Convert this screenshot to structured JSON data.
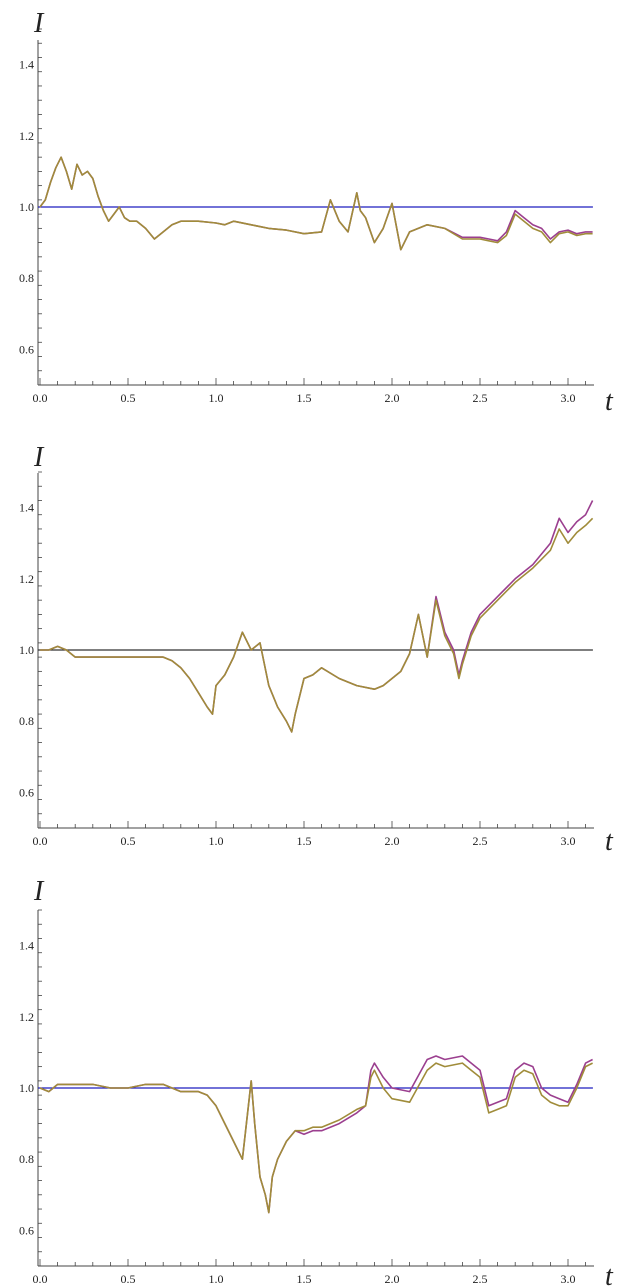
{
  "chart_data": [
    {
      "type": "line",
      "ylabel": "I",
      "xlabel": "t",
      "xlim": [
        0,
        3.14159
      ],
      "ylim": [
        0.5,
        1.5
      ],
      "x_ticks": [
        "0.0",
        "0.5",
        "1.0",
        "1.5",
        "2.0",
        "2.5",
        "3.0"
      ],
      "y_ticks": [
        "0.6",
        "0.8",
        "1.0",
        "1.2",
        "1.4"
      ],
      "grid": false,
      "colors": {
        "reference": "#1f1fbf",
        "series_a": "#9b3f8f",
        "series_b": "#a08c3a"
      },
      "reference": {
        "y": 1.0
      },
      "series": [
        {
          "x": [
            0.0,
            0.03,
            0.06,
            0.09,
            0.12,
            0.15,
            0.18,
            0.21,
            0.24,
            0.27,
            0.3,
            0.33,
            0.36,
            0.39,
            0.42,
            0.45,
            0.48,
            0.51,
            0.55,
            0.6,
            0.65,
            0.7,
            0.75,
            0.8,
            0.9,
            1.0,
            1.05,
            1.1,
            1.2,
            1.3,
            1.4,
            1.5,
            1.6,
            1.65,
            1.7,
            1.75,
            1.8,
            1.82,
            1.85,
            1.9,
            1.95,
            2.0,
            2.05,
            2.1,
            2.2,
            2.3,
            2.4,
            2.5,
            2.55,
            2.6,
            2.65,
            2.7,
            2.75,
            2.8,
            2.85,
            2.9,
            2.95,
            3.0,
            3.05,
            3.1,
            3.14
          ],
          "y": [
            1.0,
            1.02,
            1.07,
            1.11,
            1.14,
            1.1,
            1.05,
            1.12,
            1.09,
            1.1,
            1.08,
            1.03,
            0.99,
            0.96,
            0.98,
            1.0,
            0.97,
            0.96,
            0.96,
            0.94,
            0.91,
            0.93,
            0.95,
            0.96,
            0.96,
            0.955,
            0.95,
            0.96,
            0.95,
            0.94,
            0.935,
            0.925,
            0.93,
            1.02,
            0.96,
            0.93,
            1.04,
            0.99,
            0.97,
            0.9,
            0.94,
            1.01,
            0.88,
            0.93,
            0.95,
            0.94,
            0.915,
            0.915,
            0.91,
            0.905,
            0.93,
            0.99,
            0.97,
            0.95,
            0.94,
            0.91,
            0.93,
            0.935,
            0.925,
            0.93,
            0.93
          ]
        },
        {
          "x": [
            0.0,
            0.03,
            0.06,
            0.09,
            0.12,
            0.15,
            0.18,
            0.21,
            0.24,
            0.27,
            0.3,
            0.33,
            0.36,
            0.39,
            0.42,
            0.45,
            0.48,
            0.51,
            0.55,
            0.6,
            0.65,
            0.7,
            0.75,
            0.8,
            0.9,
            1.0,
            1.05,
            1.1,
            1.2,
            1.3,
            1.4,
            1.5,
            1.6,
            1.65,
            1.7,
            1.75,
            1.8,
            1.82,
            1.85,
            1.9,
            1.95,
            2.0,
            2.05,
            2.1,
            2.2,
            2.3,
            2.4,
            2.5,
            2.55,
            2.6,
            2.65,
            2.7,
            2.75,
            2.8,
            2.85,
            2.9,
            2.95,
            3.0,
            3.05,
            3.1,
            3.14
          ],
          "y": [
            1.0,
            1.02,
            1.07,
            1.11,
            1.14,
            1.1,
            1.05,
            1.12,
            1.09,
            1.1,
            1.08,
            1.03,
            0.99,
            0.96,
            0.98,
            1.0,
            0.97,
            0.96,
            0.96,
            0.94,
            0.91,
            0.93,
            0.95,
            0.96,
            0.96,
            0.955,
            0.95,
            0.96,
            0.95,
            0.94,
            0.935,
            0.925,
            0.93,
            1.02,
            0.96,
            0.93,
            1.04,
            0.99,
            0.97,
            0.9,
            0.94,
            1.01,
            0.88,
            0.93,
            0.95,
            0.94,
            0.91,
            0.91,
            0.905,
            0.9,
            0.92,
            0.98,
            0.96,
            0.94,
            0.93,
            0.9,
            0.925,
            0.93,
            0.92,
            0.925,
            0.925
          ]
        }
      ]
    },
    {
      "type": "line",
      "ylabel": "I",
      "xlabel": "t",
      "xlim": [
        0,
        3.14159
      ],
      "ylim": [
        0.5,
        1.5
      ],
      "x_ticks": [
        "0.0",
        "0.5",
        "1.0",
        "1.5",
        "2.0",
        "2.5",
        "3.0"
      ],
      "y_ticks": [
        "0.6",
        "0.8",
        "1.0",
        "1.2",
        "1.4"
      ],
      "grid": false,
      "colors": {
        "reference": "#333333",
        "series_a": "#9b3f8f",
        "series_b": "#a08c3a"
      },
      "reference": {
        "y": 1.0
      },
      "series": [
        {
          "x": [
            0.0,
            0.05,
            0.1,
            0.15,
            0.2,
            0.3,
            0.4,
            0.5,
            0.6,
            0.7,
            0.75,
            0.8,
            0.85,
            0.9,
            0.95,
            0.98,
            1.0,
            1.05,
            1.1,
            1.15,
            1.2,
            1.25,
            1.3,
            1.35,
            1.4,
            1.43,
            1.45,
            1.5,
            1.55,
            1.6,
            1.7,
            1.8,
            1.9,
            1.95,
            2.0,
            2.05,
            2.1,
            2.15,
            2.2,
            2.25,
            2.3,
            2.35,
            2.38,
            2.4,
            2.45,
            2.5,
            2.6,
            2.7,
            2.8,
            2.9,
            2.95,
            3.0,
            3.05,
            3.1,
            3.14
          ],
          "y": [
            1.0,
            1.0,
            1.01,
            1.0,
            0.98,
            0.98,
            0.98,
            0.98,
            0.98,
            0.98,
            0.97,
            0.95,
            0.92,
            0.88,
            0.84,
            0.82,
            0.9,
            0.93,
            0.98,
            1.05,
            1.0,
            1.02,
            0.9,
            0.84,
            0.8,
            0.77,
            0.82,
            0.92,
            0.93,
            0.95,
            0.92,
            0.9,
            0.89,
            0.9,
            0.92,
            0.94,
            0.99,
            1.1,
            0.98,
            1.15,
            1.05,
            1.0,
            0.93,
            0.97,
            1.05,
            1.1,
            1.15,
            1.2,
            1.24,
            1.3,
            1.37,
            1.33,
            1.36,
            1.38,
            1.42
          ]
        },
        {
          "x": [
            0.0,
            0.05,
            0.1,
            0.15,
            0.2,
            0.3,
            0.4,
            0.5,
            0.6,
            0.7,
            0.75,
            0.8,
            0.85,
            0.9,
            0.95,
            0.98,
            1.0,
            1.05,
            1.1,
            1.15,
            1.2,
            1.25,
            1.3,
            1.35,
            1.4,
            1.43,
            1.45,
            1.5,
            1.55,
            1.6,
            1.7,
            1.8,
            1.9,
            1.95,
            2.0,
            2.05,
            2.1,
            2.15,
            2.2,
            2.25,
            2.3,
            2.35,
            2.38,
            2.4,
            2.45,
            2.5,
            2.6,
            2.7,
            2.8,
            2.9,
            2.95,
            3.0,
            3.05,
            3.1,
            3.14
          ],
          "y": [
            1.0,
            1.0,
            1.01,
            1.0,
            0.98,
            0.98,
            0.98,
            0.98,
            0.98,
            0.98,
            0.97,
            0.95,
            0.92,
            0.88,
            0.84,
            0.82,
            0.9,
            0.93,
            0.98,
            1.05,
            1.0,
            1.02,
            0.9,
            0.84,
            0.8,
            0.77,
            0.82,
            0.92,
            0.93,
            0.95,
            0.92,
            0.9,
            0.89,
            0.9,
            0.92,
            0.94,
            0.99,
            1.1,
            0.98,
            1.14,
            1.04,
            0.99,
            0.92,
            0.96,
            1.04,
            1.09,
            1.14,
            1.19,
            1.23,
            1.28,
            1.34,
            1.3,
            1.33,
            1.35,
            1.37
          ]
        }
      ]
    },
    {
      "type": "line",
      "ylabel": "I",
      "xlabel": "t",
      "xlim": [
        0,
        3.14159
      ],
      "ylim": [
        0.5,
        1.5
      ],
      "x_ticks": [
        "0.0",
        "0.5",
        "1.0",
        "1.5",
        "2.0",
        "2.5",
        "3.0"
      ],
      "y_ticks": [
        "0.6",
        "0.8",
        "1.0",
        "1.2",
        "1.4"
      ],
      "grid": false,
      "colors": {
        "reference": "#1f1fbf",
        "series_a": "#9b3f8f",
        "series_b": "#a08c3a"
      },
      "reference": {
        "y": 1.0
      },
      "series": [
        {
          "x": [
            0.0,
            0.05,
            0.1,
            0.2,
            0.3,
            0.4,
            0.5,
            0.6,
            0.7,
            0.8,
            0.9,
            0.95,
            1.0,
            1.05,
            1.1,
            1.15,
            1.2,
            1.22,
            1.25,
            1.28,
            1.3,
            1.32,
            1.35,
            1.4,
            1.45,
            1.5,
            1.55,
            1.6,
            1.7,
            1.8,
            1.85,
            1.88,
            1.9,
            1.95,
            2.0,
            2.1,
            2.2,
            2.25,
            2.3,
            2.4,
            2.45,
            2.5,
            2.55,
            2.6,
            2.65,
            2.7,
            2.75,
            2.8,
            2.85,
            2.9,
            2.95,
            3.0,
            3.05,
            3.1,
            3.14
          ],
          "y": [
            1.0,
            0.99,
            1.01,
            1.01,
            1.01,
            1.0,
            1.0,
            1.01,
            1.01,
            0.99,
            0.99,
            0.98,
            0.95,
            0.9,
            0.85,
            0.8,
            1.02,
            0.9,
            0.75,
            0.7,
            0.65,
            0.75,
            0.8,
            0.85,
            0.88,
            0.87,
            0.88,
            0.88,
            0.9,
            0.93,
            0.95,
            1.05,
            1.07,
            1.03,
            1.0,
            0.99,
            1.08,
            1.09,
            1.08,
            1.09,
            1.07,
            1.05,
            0.95,
            0.96,
            0.97,
            1.05,
            1.07,
            1.06,
            1.0,
            0.98,
            0.97,
            0.96,
            1.01,
            1.07,
            1.08
          ]
        },
        {
          "x": [
            0.0,
            0.05,
            0.1,
            0.2,
            0.3,
            0.4,
            0.5,
            0.6,
            0.7,
            0.8,
            0.9,
            0.95,
            1.0,
            1.05,
            1.1,
            1.15,
            1.2,
            1.22,
            1.25,
            1.28,
            1.3,
            1.32,
            1.35,
            1.4,
            1.45,
            1.5,
            1.55,
            1.6,
            1.7,
            1.8,
            1.85,
            1.88,
            1.9,
            1.95,
            2.0,
            2.1,
            2.2,
            2.25,
            2.3,
            2.4,
            2.45,
            2.5,
            2.55,
            2.6,
            2.65,
            2.7,
            2.75,
            2.8,
            2.85,
            2.9,
            2.95,
            3.0,
            3.05,
            3.1,
            3.14
          ],
          "y": [
            1.0,
            0.99,
            1.01,
            1.01,
            1.01,
            1.0,
            1.0,
            1.01,
            1.01,
            0.99,
            0.99,
            0.98,
            0.95,
            0.9,
            0.85,
            0.8,
            1.02,
            0.9,
            0.75,
            0.7,
            0.65,
            0.75,
            0.8,
            0.85,
            0.88,
            0.88,
            0.89,
            0.89,
            0.91,
            0.94,
            0.95,
            1.03,
            1.05,
            1.0,
            0.97,
            0.96,
            1.05,
            1.07,
            1.06,
            1.07,
            1.05,
            1.03,
            0.93,
            0.94,
            0.95,
            1.03,
            1.05,
            1.04,
            0.98,
            0.96,
            0.95,
            0.95,
            1.0,
            1.06,
            1.07
          ]
        }
      ]
    }
  ]
}
